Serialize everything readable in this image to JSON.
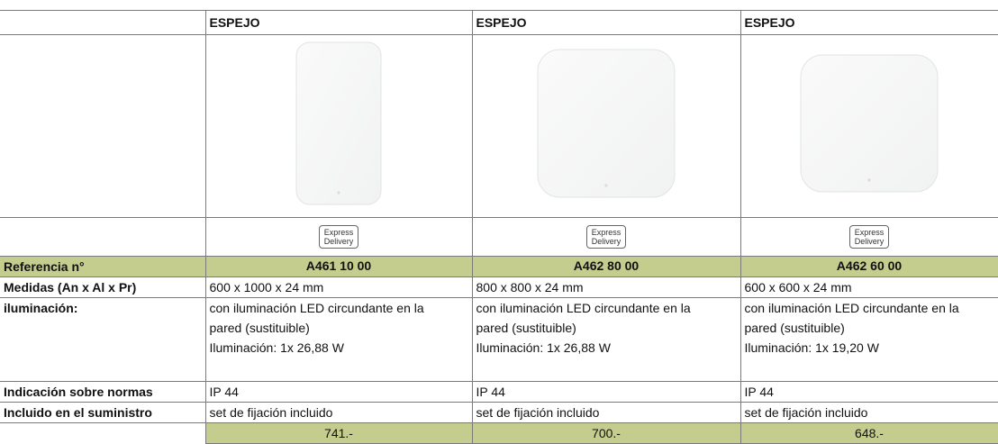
{
  "row_labels": {
    "reference": "Referencia n°",
    "dimensions": "Medidas (An x Al x Pr)",
    "lighting": "iluminación:",
    "standards": "Indicación sobre normas",
    "included": "Incluido en el suministro"
  },
  "columns": [
    {
      "header": "ESPEJO",
      "badge": [
        "Express",
        "Delivery"
      ],
      "reference": "A461 10 00",
      "dimensions": "600 x 1000 x 24 mm",
      "lighting": [
        "con iluminación LED circundante en la",
        "pared (sustituible)",
        "Iluminación: 1x 26,88 W"
      ],
      "standards": "IP 44",
      "included": "set de fijación incluido",
      "price": "741.-"
    },
    {
      "header": "ESPEJO",
      "badge": [
        "Express",
        "Delivery"
      ],
      "reference": "A462 80 00",
      "dimensions": "800 x 800 x 24 mm",
      "lighting": [
        "con iluminación LED circundante en la",
        "pared (sustituible)",
        "Iluminación: 1x 26,88 W"
      ],
      "standards": "IP 44",
      "included": "set de fijación incluido",
      "price": "700.-"
    },
    {
      "header": "ESPEJO",
      "badge": [
        "Express",
        "Delivery"
      ],
      "reference": "A462 60 00",
      "dimensions": "600 x 600 x 24 mm",
      "lighting": [
        "con iluminación LED circundante en la",
        "pared (sustituible)",
        "Iluminación: 1x 19,20 W"
      ],
      "standards": "IP 44",
      "included": "set de fijación incluido",
      "price": "648.-"
    }
  ]
}
